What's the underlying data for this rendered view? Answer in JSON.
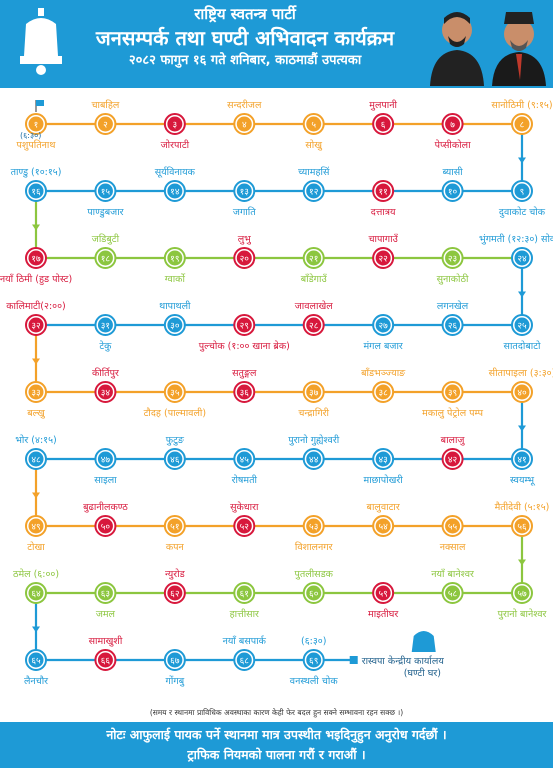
{
  "header": {
    "title1": "राष्ट्रिय स्वतन्त्र पार्टी",
    "title2": "जनसम्पर्क तथा घण्टी अभिवादन कार्यक्रम",
    "title3": "२०८२ फागुन १६ गते शनिबार, काठमाडौं उपत्यका"
  },
  "colors": {
    "orange": "#f3a129",
    "red": "#d7183c",
    "blue": "#1e9ad6",
    "green": "#8cc63f",
    "darkblue": "#1f5f8b"
  },
  "rows": [
    {
      "color": "#f3a129",
      "dir": "ltr",
      "stops": [
        {
          "n": "१",
          "color": "#f3a129",
          "above": "",
          "below": "पशुपतिनाथ",
          "flag": true
        },
        {
          "n": "२",
          "color": "#f3a129",
          "above": "चाबहिल",
          "below": ""
        },
        {
          "n": "३",
          "color": "#d7183c",
          "above": "",
          "below": "जोरपाटी"
        },
        {
          "n": "४",
          "color": "#f3a129",
          "above": "सन्दरीजल",
          "below": ""
        },
        {
          "n": "५",
          "color": "#f3a129",
          "above": "",
          "below": "सोखु"
        },
        {
          "n": "६",
          "color": "#d7183c",
          "above": "मुलपानी",
          "below": ""
        },
        {
          "n": "७",
          "color": "#d7183c",
          "above": "",
          "below": "पेप्सीकोला"
        },
        {
          "n": "८",
          "color": "#f3a129",
          "above": "सानोठिमी (९:१५)",
          "below": ""
        }
      ],
      "start_time": "(६:३०)"
    },
    {
      "color": "#1e9ad6",
      "dir": "rtl",
      "stops": [
        {
          "n": "९",
          "color": "#1e9ad6",
          "above": "",
          "below": "दुवाकोट चोक"
        },
        {
          "n": "१०",
          "color": "#1e9ad6",
          "above": "ब्यासी",
          "below": ""
        },
        {
          "n": "११",
          "color": "#d7183c",
          "above": "",
          "below": "दत्तात्रय"
        },
        {
          "n": "१२",
          "color": "#1e9ad6",
          "above": "च्यामहसिं",
          "below": ""
        },
        {
          "n": "१३",
          "color": "#1e9ad6",
          "above": "",
          "below": "जगाति"
        },
        {
          "n": "१४",
          "color": "#1e9ad6",
          "above": "सूर्यविनायक",
          "below": ""
        },
        {
          "n": "१५",
          "color": "#1e9ad6",
          "above": "",
          "below": "पाण्डुबजार"
        },
        {
          "n": "१६",
          "color": "#1e9ad6",
          "above": "ताण्डु (१०:१५)",
          "below": ""
        }
      ]
    },
    {
      "color": "#8cc63f",
      "dir": "ltr",
      "stops": [
        {
          "n": "१७",
          "color": "#d7183c",
          "above": "",
          "below": "नयाँ ठिमी (हुड पोस्ट)"
        },
        {
          "n": "१८",
          "color": "#8cc63f",
          "above": "जडिबुटी",
          "below": ""
        },
        {
          "n": "१९",
          "color": "#8cc63f",
          "above": "",
          "below": "ग्वार्को"
        },
        {
          "n": "२०",
          "color": "#d7183c",
          "above": "लुभु",
          "below": ""
        },
        {
          "n": "२१",
          "color": "#8cc63f",
          "above": "",
          "below": "बाँडेगाउँ"
        },
        {
          "n": "२२",
          "color": "#d7183c",
          "above": "चापागाउँ",
          "below": ""
        },
        {
          "n": "२३",
          "color": "#8cc63f",
          "above": "",
          "below": "सुनाकोठी"
        },
        {
          "n": "२४",
          "color": "#1e9ad6",
          "above": "भुंगमती (१२:३०) सोकना",
          "below": ""
        }
      ]
    },
    {
      "color": "#1e9ad6",
      "dir": "rtl",
      "stops": [
        {
          "n": "२५",
          "color": "#1e9ad6",
          "above": "",
          "below": "सातदोबाटो"
        },
        {
          "n": "२६",
          "color": "#1e9ad6",
          "above": "लगनखेल",
          "below": ""
        },
        {
          "n": "२७",
          "color": "#1e9ad6",
          "above": "",
          "below": "मंगल बजार"
        },
        {
          "n": "२८",
          "color": "#d7183c",
          "above": "जावलाखेल",
          "below": ""
        },
        {
          "n": "२९",
          "color": "#d7183c",
          "above": "",
          "below": "पुल्चोक (१:०० खाना ब्रेक)"
        },
        {
          "n": "३०",
          "color": "#1e9ad6",
          "above": "थापाथली",
          "below": ""
        },
        {
          "n": "३१",
          "color": "#1e9ad6",
          "above": "",
          "below": "टेकु"
        },
        {
          "n": "३२",
          "color": "#d7183c",
          "above": "कालिमाटी(२:००)",
          "below": ""
        }
      ]
    },
    {
      "color": "#f3a129",
      "dir": "ltr",
      "stops": [
        {
          "n": "३३",
          "color": "#f3a129",
          "above": "",
          "below": "बल्खु"
        },
        {
          "n": "३४",
          "color": "#d7183c",
          "above": "कीर्तिपुर",
          "below": ""
        },
        {
          "n": "३५",
          "color": "#f3a129",
          "above": "",
          "below": "टौदह (पाल्मावली)"
        },
        {
          "n": "३६",
          "color": "#d7183c",
          "above": "सतुङ्गल",
          "below": ""
        },
        {
          "n": "३७",
          "color": "#f3a129",
          "above": "",
          "below": "चन्द्रागिरी"
        },
        {
          "n": "३८",
          "color": "#f3a129",
          "above": "बाँडभञ्ज्याङ",
          "below": ""
        },
        {
          "n": "३९",
          "color": "#f3a129",
          "above": "",
          "below": "मकालु पेट्रोल पम्प"
        },
        {
          "n": "४०",
          "color": "#f3a129",
          "above": "सीतापाइला (३:३०)",
          "below": ""
        }
      ]
    },
    {
      "color": "#1e9ad6",
      "dir": "rtl",
      "stops": [
        {
          "n": "४१",
          "color": "#1e9ad6",
          "above": "",
          "below": "स्वयम्भू"
        },
        {
          "n": "४२",
          "color": "#d7183c",
          "above": "बालाजु",
          "below": ""
        },
        {
          "n": "४३",
          "color": "#1e9ad6",
          "above": "",
          "below": "माछापोखरी"
        },
        {
          "n": "४४",
          "color": "#1e9ad6",
          "above": "पुरानो गुह्येश्वरी",
          "below": ""
        },
        {
          "n": "४५",
          "color": "#1e9ad6",
          "above": "",
          "below": "रोषमती"
        },
        {
          "n": "४६",
          "color": "#1e9ad6",
          "above": "फुटुङ",
          "below": ""
        },
        {
          "n": "४७",
          "color": "#1e9ad6",
          "above": "",
          "below": "साइला"
        },
        {
          "n": "४८",
          "color": "#1e9ad6",
          "above": "भोर (४:१५)",
          "below": ""
        }
      ]
    },
    {
      "color": "#f3a129",
      "dir": "ltr",
      "stops": [
        {
          "n": "४९",
          "color": "#f3a129",
          "above": "",
          "below": "टोखा"
        },
        {
          "n": "५०",
          "color": "#d7183c",
          "above": "बुढानीलकण्ठ",
          "below": ""
        },
        {
          "n": "५१",
          "color": "#f3a129",
          "above": "",
          "below": "कपन"
        },
        {
          "n": "५२",
          "color": "#d7183c",
          "above": "सुकेधारा",
          "below": ""
        },
        {
          "n": "५३",
          "color": "#f3a129",
          "above": "",
          "below": "विशालनगर"
        },
        {
          "n": "५४",
          "color": "#f3a129",
          "above": "बालुवाटार",
          "below": ""
        },
        {
          "n": "५५",
          "color": "#f3a129",
          "above": "",
          "below": "नक्साल"
        },
        {
          "n": "५६",
          "color": "#f3a129",
          "above": "मैतीदेवी (५:१५)",
          "below": ""
        }
      ]
    },
    {
      "color": "#8cc63f",
      "dir": "rtl",
      "stops": [
        {
          "n": "५७",
          "color": "#8cc63f",
          "above": "",
          "below": "पुरानो बानेश्वर"
        },
        {
          "n": "५८",
          "color": "#8cc63f",
          "above": "नयाँ बानेश्वर",
          "below": ""
        },
        {
          "n": "५९",
          "color": "#d7183c",
          "above": "",
          "below": "माइतीघर"
        },
        {
          "n": "६०",
          "color": "#8cc63f",
          "above": "पुतलीसडक",
          "below": ""
        },
        {
          "n": "६१",
          "color": "#8cc63f",
          "above": "",
          "below": "हात्तीसार"
        },
        {
          "n": "६२",
          "color": "#d7183c",
          "above": "न्युरोड",
          "below": ""
        },
        {
          "n": "६३",
          "color": "#8cc63f",
          "above": "",
          "below": "जमल"
        },
        {
          "n": "६४",
          "color": "#8cc63f",
          "above": "ठमेल (६:००)",
          "below": ""
        }
      ]
    },
    {
      "color": "#1e9ad6",
      "dir": "ltr",
      "stops": [
        {
          "n": "६५",
          "color": "#1e9ad6",
          "above": "",
          "below": "लैनचौर"
        },
        {
          "n": "६६",
          "color": "#d7183c",
          "above": "सामाखुशी",
          "below": ""
        },
        {
          "n": "६७",
          "color": "#1e9ad6",
          "above": "",
          "below": "गोंगबु"
        },
        {
          "n": "६८",
          "color": "#1e9ad6",
          "above": "नयाँ बसपार्क",
          "below": ""
        },
        {
          "n": "६९",
          "color": "#1e9ad6",
          "above": "(६:३०)",
          "below": "वनस्थली चोक"
        }
      ]
    }
  ],
  "destination": "रास्वपा केन्द्रीय कार्यालय (घण्टी घर)",
  "note_small": "(समय र स्थानमा प्राविधिक अवस्थाका कारण केही फेर बदल हुन सक्ने सम्भावना रहन सक्छ ।)",
  "footer": {
    "line1": "नोटः आफुलाई पायक पर्ने स्थानमा मात्र उपस्थीत भइदिनुहुन अनुरोध गर्दछौं ।",
    "line2": "ट्राफिक नियमको पालना गरौं र गराऔं ।"
  }
}
